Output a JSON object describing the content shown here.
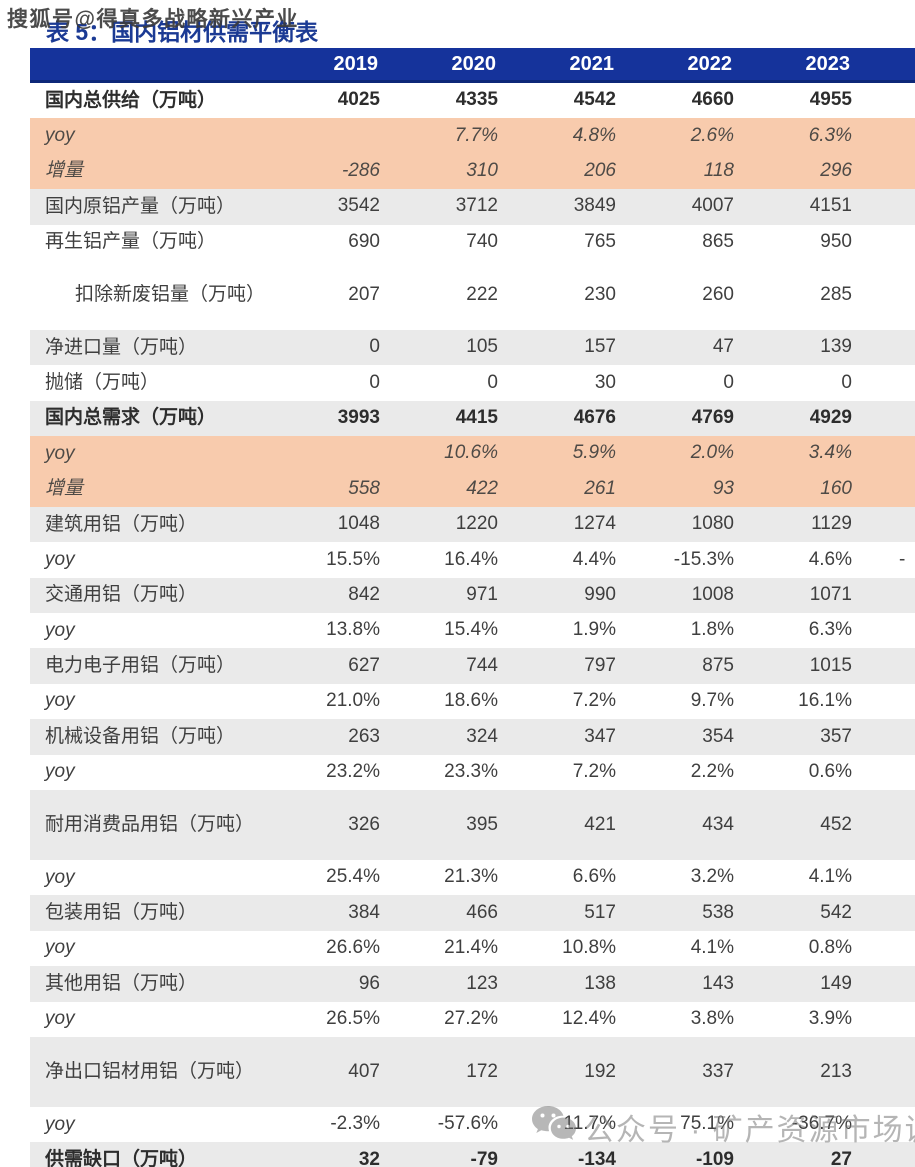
{
  "watermark_top": "搜狐号@得真多战略新兴产业",
  "title": "表 5：国内铝材供需平衡表",
  "watermark_bottom": {
    "icon": "wechat-icon",
    "text": "公众号 · 矿产资源市场调研"
  },
  "colors": {
    "header_bg": "#15339b",
    "title": "#1b3a94",
    "peach": "#f8cbad",
    "gray": "#eaeaea"
  },
  "table": {
    "columns": [
      "",
      "2019",
      "2020",
      "2021",
      "2022",
      "2023"
    ],
    "rows": [
      {
        "label": "国内总供给（万吨）",
        "values": [
          "4025",
          "4335",
          "4542",
          "4660",
          "4955"
        ],
        "bg": "white",
        "bold": true
      },
      {
        "label": "yoy",
        "values": [
          "",
          "7.7%",
          "4.8%",
          "2.6%",
          "6.3%"
        ],
        "bg": "peach",
        "italic_label": true,
        "italic_values": true
      },
      {
        "label": "增量",
        "values": [
          "-286",
          "310",
          "206",
          "118",
          "296"
        ],
        "bg": "peach",
        "italic_label": true,
        "italic_values": true
      },
      {
        "label": "国内原铝产量（万吨）",
        "values": [
          "3542",
          "3712",
          "3849",
          "4007",
          "4151"
        ],
        "bg": "gray"
      },
      {
        "label": "再生铝产量（万吨）",
        "values": [
          "690",
          "740",
          "765",
          "865",
          "950"
        ],
        "bg": "white"
      },
      {
        "label": "扣除新废铝量（万吨）",
        "values": [
          "207",
          "222",
          "230",
          "260",
          "285"
        ],
        "bg": "white",
        "tall": true,
        "indent": true
      },
      {
        "label": "净进口量（万吨）",
        "values": [
          "0",
          "105",
          "157",
          "47",
          "139"
        ],
        "bg": "gray"
      },
      {
        "label": "抛储（万吨）",
        "values": [
          "0",
          "0",
          "30",
          "0",
          "0"
        ],
        "bg": "white"
      },
      {
        "label": "国内总需求（万吨）",
        "values": [
          "3993",
          "4415",
          "4676",
          "4769",
          "4929"
        ],
        "bg": "gray",
        "bold": true
      },
      {
        "label": "yoy",
        "values": [
          "",
          "10.6%",
          "5.9%",
          "2.0%",
          "3.4%"
        ],
        "bg": "peach",
        "italic_label": true,
        "italic_values": true
      },
      {
        "label": "增量",
        "values": [
          "558",
          "422",
          "261",
          "93",
          "160"
        ],
        "bg": "peach",
        "italic_label": true,
        "italic_values": true
      },
      {
        "label": "建筑用铝（万吨）",
        "values": [
          "1048",
          "1220",
          "1274",
          "1080",
          "1129"
        ],
        "bg": "gray"
      },
      {
        "label": "yoy",
        "values": [
          "15.5%",
          "16.4%",
          "4.4%",
          "-15.3%",
          "4.6%"
        ],
        "bg": "white",
        "italic_label": true,
        "clipped_value": "-"
      },
      {
        "label": "交通用铝（万吨）",
        "values": [
          "842",
          "971",
          "990",
          "1008",
          "1071"
        ],
        "bg": "gray"
      },
      {
        "label": "yoy",
        "values": [
          "13.8%",
          "15.4%",
          "1.9%",
          "1.8%",
          "6.3%"
        ],
        "bg": "white",
        "italic_label": true
      },
      {
        "label": "电力电子用铝（万吨）",
        "values": [
          "627",
          "744",
          "797",
          "875",
          "1015"
        ],
        "bg": "gray"
      },
      {
        "label": "yoy",
        "values": [
          "21.0%",
          "18.6%",
          "7.2%",
          "9.7%",
          "16.1%"
        ],
        "bg": "white",
        "italic_label": true
      },
      {
        "label": "机械设备用铝（万吨）",
        "values": [
          "263",
          "324",
          "347",
          "354",
          "357"
        ],
        "bg": "gray"
      },
      {
        "label": "yoy",
        "values": [
          "23.2%",
          "23.3%",
          "7.2%",
          "2.2%",
          "0.6%"
        ],
        "bg": "white",
        "italic_label": true
      },
      {
        "label": "耐用消费品用铝（万吨）",
        "values": [
          "326",
          "395",
          "421",
          "434",
          "452"
        ],
        "bg": "gray",
        "tall": true
      },
      {
        "label": "yoy",
        "values": [
          "25.4%",
          "21.3%",
          "6.6%",
          "3.2%",
          "4.1%"
        ],
        "bg": "white",
        "italic_label": true
      },
      {
        "label": "包装用铝（万吨）",
        "values": [
          "384",
          "466",
          "517",
          "538",
          "542"
        ],
        "bg": "gray"
      },
      {
        "label": "yoy",
        "values": [
          "26.6%",
          "21.4%",
          "10.8%",
          "4.1%",
          "0.8%"
        ],
        "bg": "white",
        "italic_label": true
      },
      {
        "label": "其他用铝（万吨）",
        "values": [
          "96",
          "123",
          "138",
          "143",
          "149"
        ],
        "bg": "gray"
      },
      {
        "label": "yoy",
        "values": [
          "26.5%",
          "27.2%",
          "12.4%",
          "3.8%",
          "3.9%"
        ],
        "bg": "white",
        "italic_label": true
      },
      {
        "label": "净出口铝材用铝（万吨）",
        "values": [
          "407",
          "172",
          "192",
          "337",
          "213"
        ],
        "bg": "gray",
        "tall": true
      },
      {
        "label": "yoy",
        "values": [
          "-2.3%",
          "-57.6%",
          "11.7%",
          "75.1%",
          "-36.7%"
        ],
        "bg": "white",
        "italic_label": true
      },
      {
        "label": "供需缺口（万吨）",
        "values": [
          "32",
          "-79",
          "-134",
          "-109",
          "27"
        ],
        "bg": "gray",
        "bold": true
      }
    ]
  }
}
